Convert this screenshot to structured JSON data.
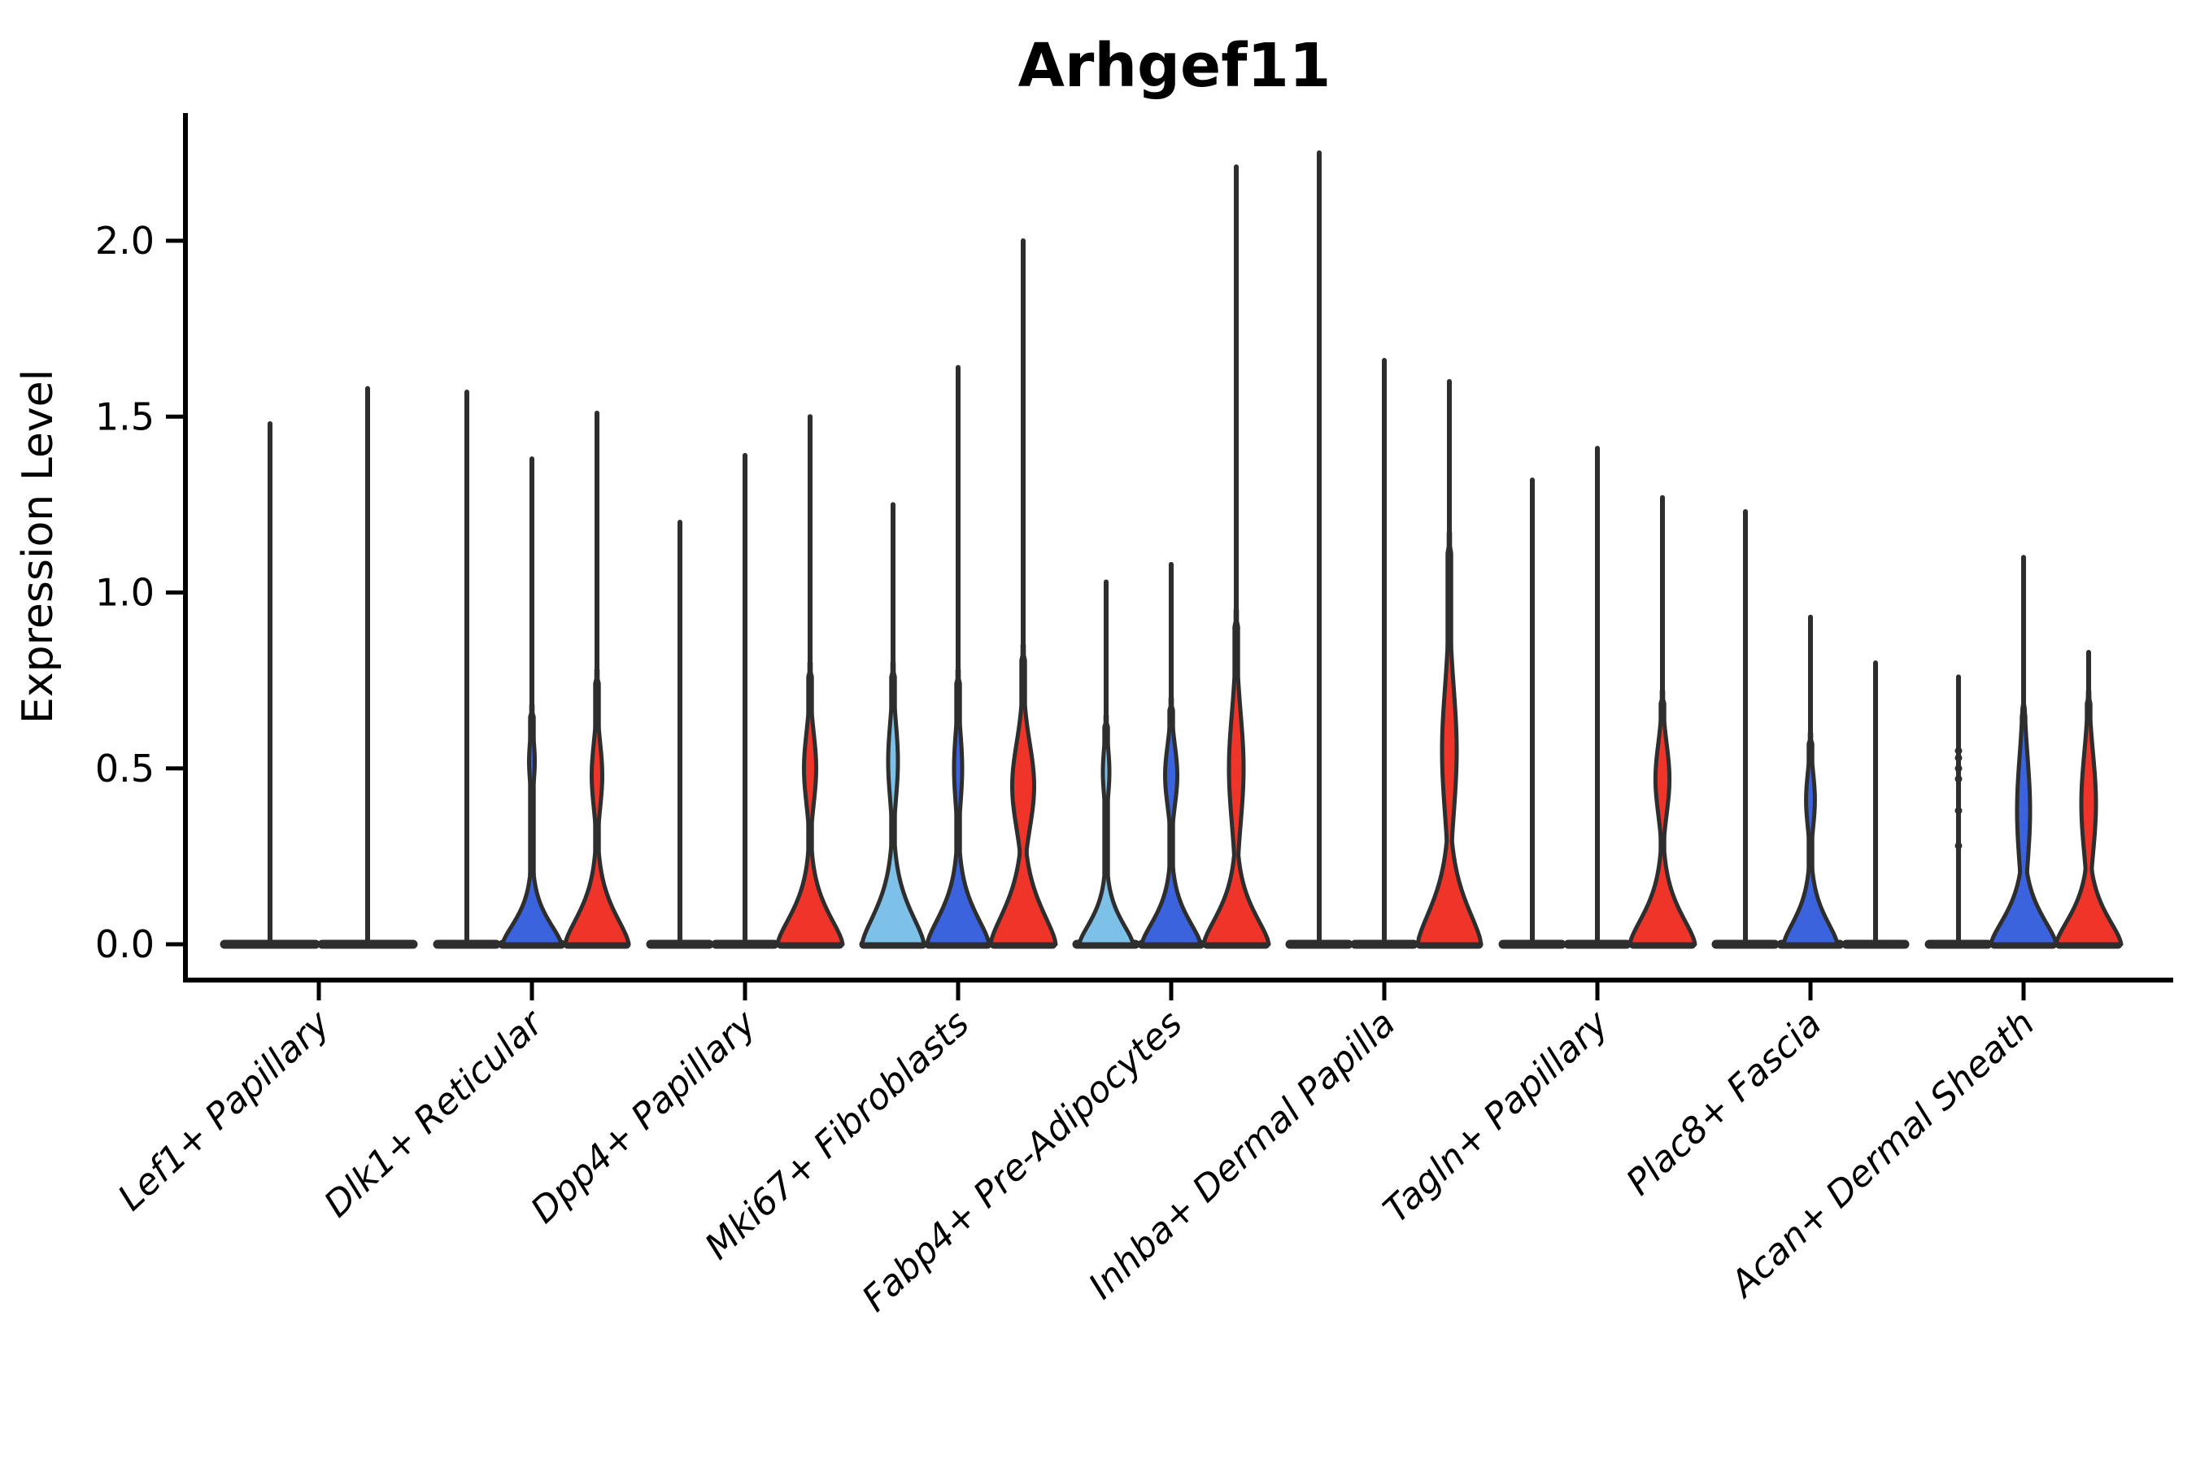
{
  "chart_data": {
    "type": "violin",
    "title": "Arhgef11",
    "ylabel": "Expression Level",
    "xlabel": "",
    "ylim": [
      0,
      2.36
    ],
    "yticks": [
      0.0,
      0.5,
      1.0,
      1.5,
      2.0
    ],
    "ytick_labels": [
      "0.0",
      "0.5",
      "1.0",
      "1.5",
      "2.0"
    ],
    "grid": false,
    "legend_position": "none",
    "series_colors": {
      "light_blue": "#7dc0e8",
      "blue": "#3b63dd",
      "red": "#ef3429",
      "outline": "#2e2e2e",
      "axis": "#000000"
    },
    "categories": [
      "Lef1+ Papillary",
      "Dlk1+ Reticular",
      "Dpp4+ Papillary",
      "Mki67+ Fibroblasts",
      "Fabp4+ Pre-Adipocytes",
      "Inhba+ Dermal Papilla",
      "Tagln+ Papillary",
      "Plac8+ Fascia",
      "Acan+ Dermal Sheath"
    ],
    "groups": [
      {
        "category": "Lef1+ Papillary",
        "violins": [
          {
            "fill": null,
            "max": 1.48
          },
          {
            "fill": null,
            "max": 1.58
          }
        ]
      },
      {
        "category": "Dlk1+ Reticular",
        "violins": [
          {
            "fill": null,
            "max": 1.57
          },
          {
            "fill": "blue",
            "max": 1.38,
            "body": {
              "base_hw": 36,
              "flare_h": 0.1,
              "bulge_center": 0.52,
              "bulge_hw": 3.5,
              "bulge_sigma": 0.09,
              "fill_top": 0.68
            }
          },
          {
            "fill": "red",
            "max": 1.51,
            "body": {
              "base_hw": 39,
              "flare_h": 0.13,
              "bulge_center": 0.48,
              "bulge_hw": 6.5,
              "bulge_sigma": 0.13,
              "fill_top": 0.78
            }
          }
        ]
      },
      {
        "category": "Dpp4+ Papillary",
        "violins": [
          {
            "fill": null,
            "max": 1.2
          },
          {
            "fill": null,
            "max": 1.39
          },
          {
            "fill": "red",
            "max": 1.5,
            "body": {
              "base_hw": 40,
              "flare_h": 0.13,
              "bulge_center": 0.5,
              "bulge_hw": 7.5,
              "bulge_sigma": 0.14,
              "fill_top": 0.8
            }
          }
        ]
      },
      {
        "category": "Mki67+ Fibroblasts",
        "violins": [
          {
            "fill": "light_blue",
            "max": 1.25,
            "body": {
              "base_hw": 38,
              "flare_h": 0.14,
              "bulge_center": 0.52,
              "bulge_hw": 6.0,
              "bulge_sigma": 0.15,
              "fill_top": 0.8
            }
          },
          {
            "fill": "blue",
            "max": 1.64,
            "body": {
              "base_hw": 38,
              "flare_h": 0.13,
              "bulge_center": 0.5,
              "bulge_hw": 5.0,
              "bulge_sigma": 0.14,
              "fill_top": 0.78
            }
          },
          {
            "fill": "red",
            "max": 2.0,
            "body": {
              "base_hw": 40,
              "flare_h": 0.15,
              "bulge_center": 0.45,
              "bulge_hw": 13.5,
              "bulge_sigma": 0.17,
              "fill_top": 0.85
            }
          }
        ]
      },
      {
        "category": "Fabp4+ Pre-Adipocytes",
        "violins": [
          {
            "fill": "light_blue",
            "max": 1.03,
            "body": {
              "base_hw": 33,
              "flare_h": 0.1,
              "bulge_center": 0.49,
              "bulge_hw": 4.0,
              "bulge_sigma": 0.1,
              "fill_top": 0.65
            }
          },
          {
            "fill": "blue",
            "max": 1.08,
            "body": {
              "base_hw": 36,
              "flare_h": 0.11,
              "bulge_center": 0.48,
              "bulge_hw": 7.5,
              "bulge_sigma": 0.12,
              "fill_top": 0.7
            }
          },
          {
            "fill": "red",
            "max": 2.21,
            "body": {
              "base_hw": 40,
              "flare_h": 0.13,
              "bulge_center": 0.5,
              "bulge_hw": 9.0,
              "bulge_sigma": 0.22,
              "fill_top": 0.95
            }
          }
        ]
      },
      {
        "category": "Inhba+ Dermal Papilla",
        "violins": [
          {
            "fill": null,
            "max": 2.25
          },
          {
            "fill": null,
            "max": 1.66
          },
          {
            "fill": "red",
            "max": 1.6,
            "body": {
              "base_hw": 39,
              "flare_h": 0.16,
              "bulge_center": 0.55,
              "bulge_hw": 9.0,
              "bulge_sigma": 0.25,
              "fill_top": 1.17
            }
          }
        ]
      },
      {
        "category": "Tagln+ Papillary",
        "violins": [
          {
            "fill": null,
            "max": 1.32
          },
          {
            "fill": null,
            "max": 1.41
          },
          {
            "fill": "red",
            "max": 1.27,
            "body": {
              "base_hw": 40,
              "flare_h": 0.13,
              "bulge_center": 0.47,
              "bulge_hw": 8.6,
              "bulge_sigma": 0.14,
              "fill_top": 0.72
            }
          }
        ]
      },
      {
        "category": "Plac8+ Fascia",
        "violins": [
          {
            "fill": null,
            "max": 1.23
          },
          {
            "fill": "blue",
            "max": 0.93,
            "body": {
              "base_hw": 33,
              "flare_h": 0.11,
              "bulge_center": 0.41,
              "bulge_hw": 5.4,
              "bulge_sigma": 0.11,
              "fill_top": 0.6
            }
          },
          {
            "fill": null,
            "max": 0.8
          }
        ]
      },
      {
        "category": "Acan+ Dermal Sheath",
        "violins": [
          {
            "fill": null,
            "max": 0.76,
            "dots": [
              0.28,
              0.38,
              0.47,
              0.5,
              0.53,
              0.55
            ]
          },
          {
            "fill": "blue",
            "max": 1.1,
            "body": {
              "base_hw": 40,
              "flare_h": 0.12,
              "bulge_center": 0.38,
              "bulge_hw": 8.0,
              "bulge_sigma": 0.22,
              "fill_top": 0.68
            }
          },
          {
            "fill": "red",
            "max": 0.83,
            "body": {
              "base_hw": 40,
              "flare_h": 0.12,
              "bulge_center": 0.4,
              "bulge_hw": 9.0,
              "bulge_sigma": 0.2,
              "fill_top": 0.72
            }
          }
        ]
      }
    ]
  }
}
